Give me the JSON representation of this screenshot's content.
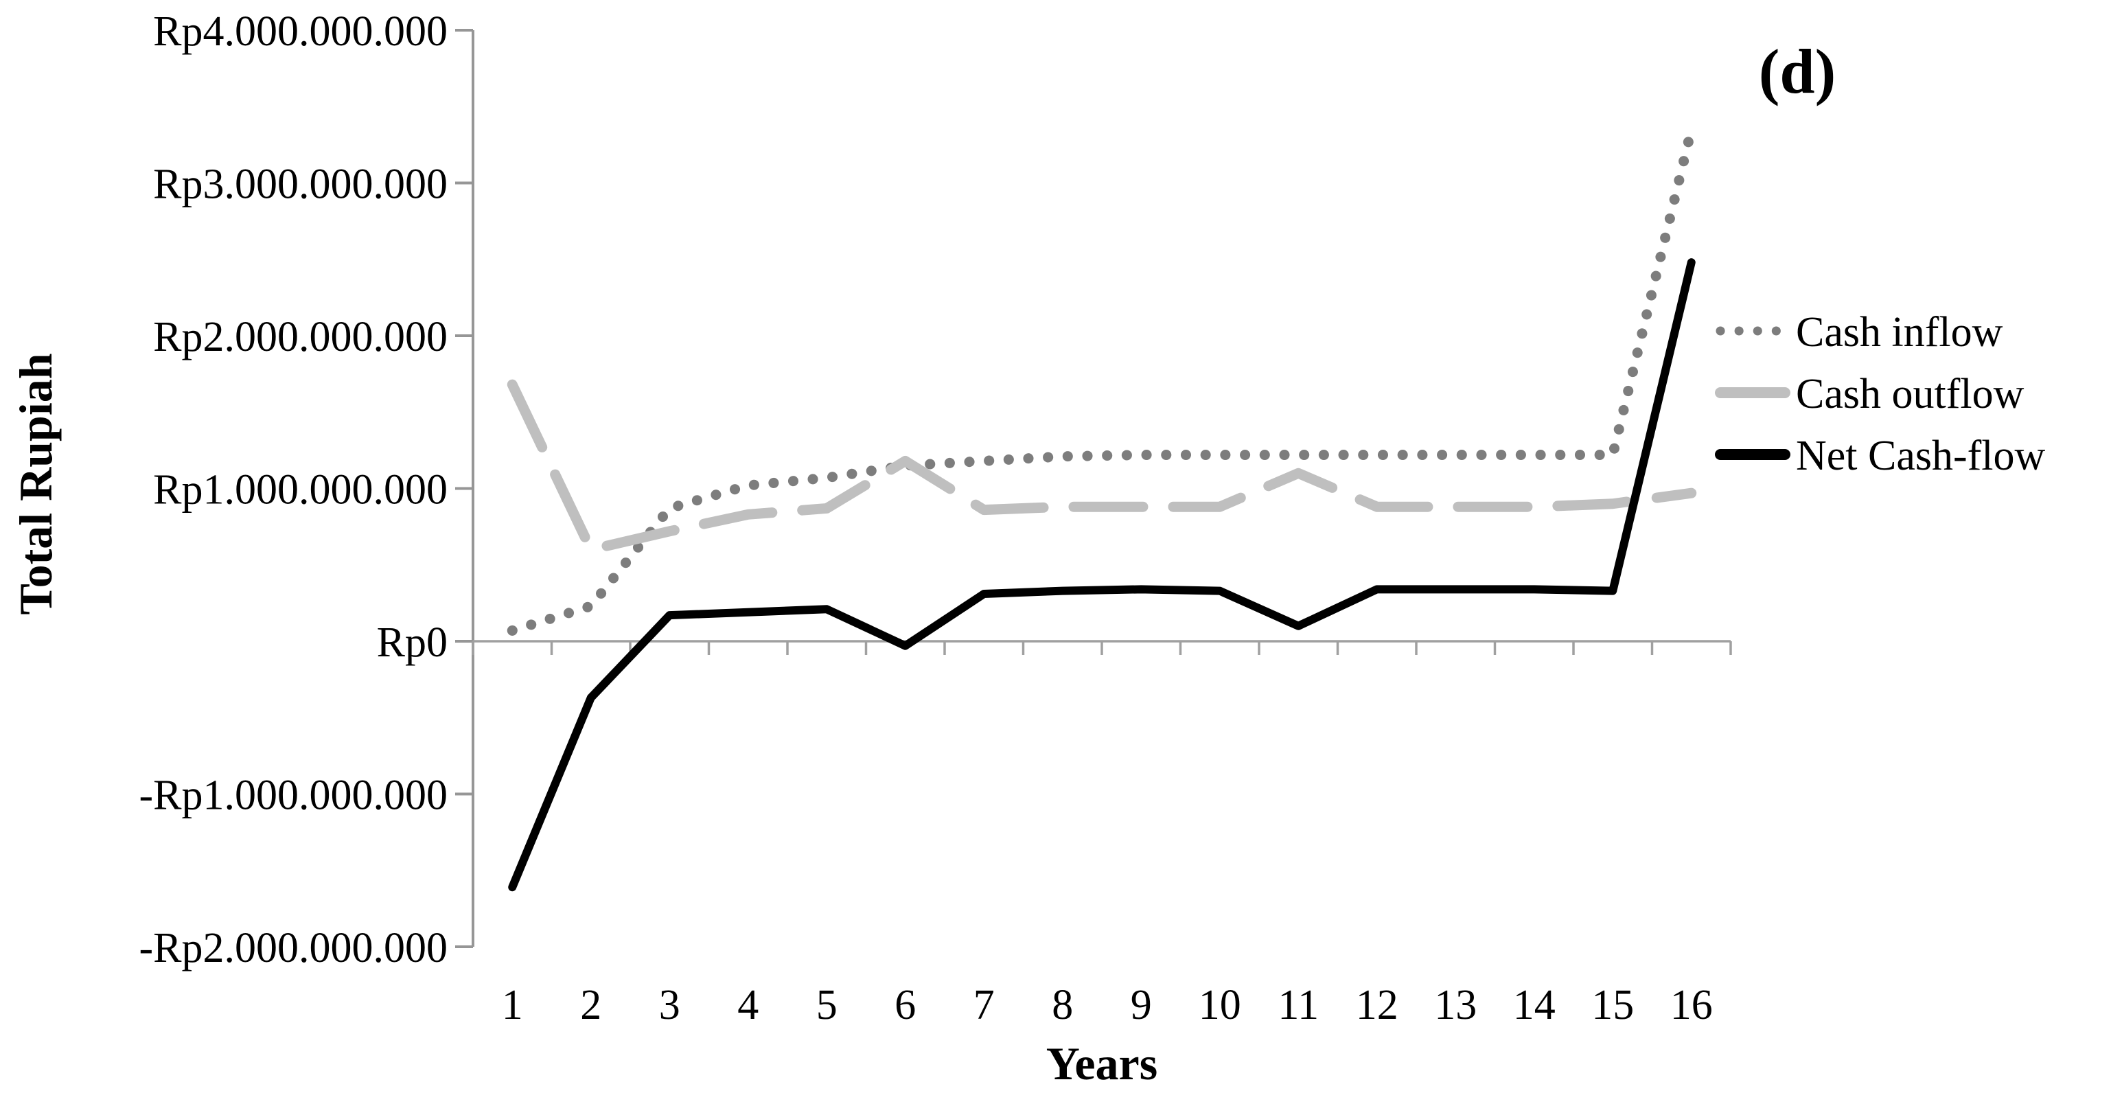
{
  "chart_data": {
    "type": "line",
    "title": "(d)",
    "xlabel": "Years",
    "ylabel": "Total Rupiah",
    "value_unit": "billion Rupiah (Rp 1.000.000.000)",
    "grid": false,
    "legend_position": "right",
    "ylim_billion_rp": [
      -2,
      4
    ],
    "categories": [
      "1",
      "2",
      "3",
      "4",
      "5",
      "6",
      "7",
      "8",
      "9",
      "10",
      "11",
      "12",
      "13",
      "14",
      "15",
      "16"
    ],
    "y_ticks": [
      {
        "value": 4,
        "label": "Rp4.000.000.000"
      },
      {
        "value": 3,
        "label": "Rp3.000.000.000"
      },
      {
        "value": 2,
        "label": "Rp2.000.000.000"
      },
      {
        "value": 1,
        "label": "Rp1.000.000.000"
      },
      {
        "value": 0,
        "label": "Rp0"
      },
      {
        "value": -1,
        "label": "-Rp1.000.000.000"
      },
      {
        "value": -2,
        "label": "-Rp2.000.000.000"
      }
    ],
    "series": [
      {
        "name": "Cash inflow",
        "style": "dotted",
        "color": "#7d7d7d",
        "values": [
          0.07,
          0.23,
          0.87,
          1.02,
          1.07,
          1.15,
          1.18,
          1.21,
          1.22,
          1.22,
          1.22,
          1.22,
          1.22,
          1.22,
          1.22,
          3.35
        ]
      },
      {
        "name": "Cash outflow",
        "style": "dashed",
        "color": "#bfbfbf",
        "values": [
          1.68,
          0.6,
          0.72,
          0.83,
          0.87,
          1.18,
          0.86,
          0.88,
          0.88,
          0.88,
          1.1,
          0.88,
          0.88,
          0.88,
          0.9,
          0.97
        ]
      },
      {
        "name": "Net Cash-flow",
        "style": "solid",
        "color": "#000000",
        "values": [
          -1.61,
          -0.37,
          0.17,
          0.19,
          0.21,
          -0.03,
          0.31,
          0.33,
          0.34,
          0.33,
          0.1,
          0.34,
          0.34,
          0.34,
          0.33,
          2.48
        ]
      }
    ],
    "legend": [
      "Cash inflow",
      "Cash outflow",
      "Net Cash-flow"
    ]
  },
  "axis_colors": {
    "axis_line": "#969696",
    "zero_line": "#a0a0a0"
  }
}
